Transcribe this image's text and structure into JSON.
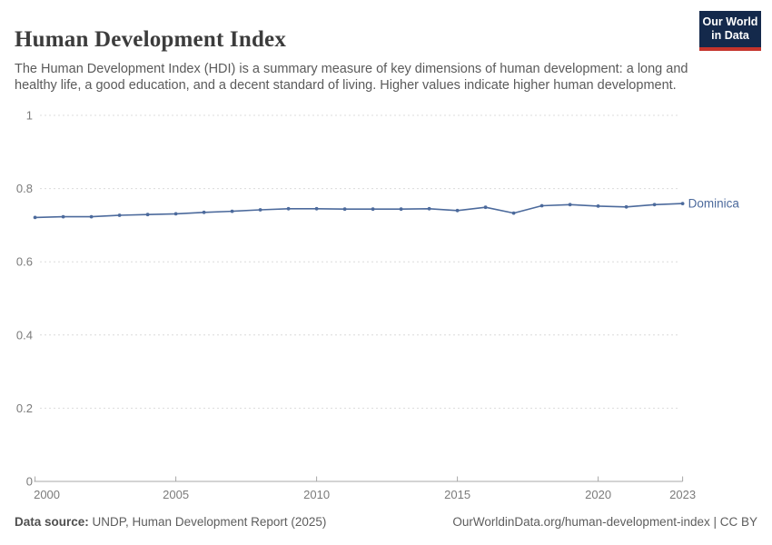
{
  "header": {
    "title": "Human Development Index",
    "subtitle": "The Human Development Index (HDI) is a summary measure of key dimensions of human development: a long and healthy life, a good education, and a decent standard of living. Higher values indicate higher human development.",
    "logo": {
      "line1": "Our World",
      "line2": "in Data"
    }
  },
  "chart_data": {
    "type": "line",
    "title": "Human Development Index",
    "entity": "Dominica",
    "x": [
      2000,
      2001,
      2002,
      2003,
      2004,
      2005,
      2006,
      2007,
      2008,
      2009,
      2010,
      2011,
      2012,
      2013,
      2014,
      2015,
      2016,
      2017,
      2018,
      2019,
      2020,
      2021,
      2022,
      2023
    ],
    "series": [
      {
        "name": "Dominica",
        "color": "#4c6a9c",
        "values": [
          0.721,
          0.723,
          0.723,
          0.727,
          0.729,
          0.731,
          0.735,
          0.738,
          0.742,
          0.745,
          0.745,
          0.744,
          0.744,
          0.744,
          0.745,
          0.74,
          0.749,
          0.733,
          0.753,
          0.756,
          0.752,
          0.75,
          0.756,
          0.759
        ]
      }
    ],
    "xlabel": "",
    "ylabel": "",
    "ylim": [
      0,
      1
    ],
    "yticks": [
      0,
      0.2,
      0.4,
      0.6,
      0.8,
      1
    ],
    "ytick_labels": [
      "0",
      "0.2",
      "0.4",
      "0.6",
      "0.8",
      "1"
    ],
    "xticks": [
      2000,
      2005,
      2010,
      2015,
      2020,
      2023
    ],
    "grid": "horizontal-dashed",
    "legend_position": "end-of-line-label"
  },
  "footer": {
    "source_label": "Data source:",
    "source_text": " UNDP, Human Development Report (2025)",
    "credit": "OurWorldinData.org/human-development-index | CC BY"
  },
  "colors": {
    "line": "#4c6a9c",
    "logo_navy": "#14294b",
    "logo_red": "#c5342c",
    "grid": "#dcdcdc",
    "axis": "#a8a8a8"
  }
}
